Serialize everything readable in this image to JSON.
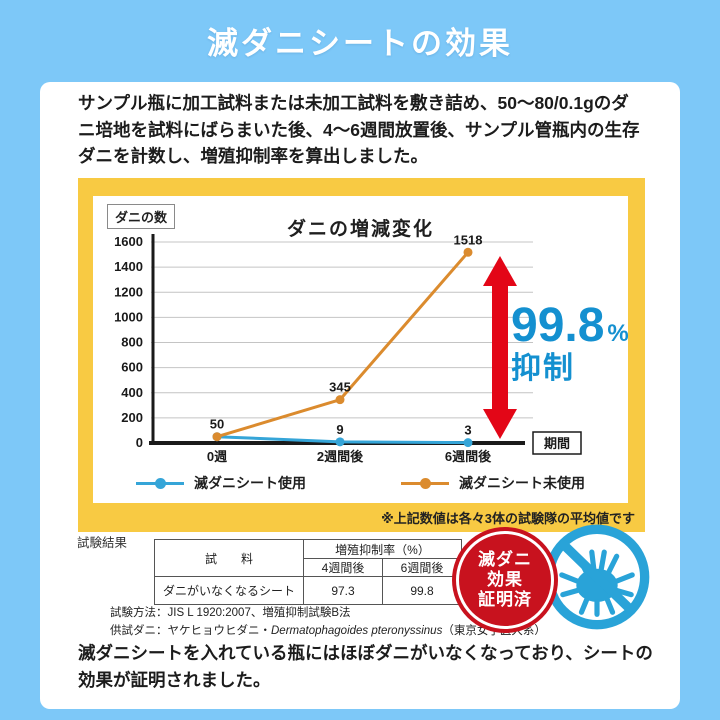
{
  "page": {
    "title": "滅ダニシートの効果",
    "bg_color": "#7dc8f8"
  },
  "intro": {
    "text": "サンプル瓶に加工試料または未加工試料を敷き詰め、50〜80/0.1gのダニ培地を試料にばらまいた後、4〜6週間放置後、サンプル管瓶内の生存ダニを計数し、増殖抑制率を算出しました。"
  },
  "chart_data": {
    "type": "line",
    "title": "ダニの増減変化",
    "y_axis_label": "ダニの数",
    "x_axis_label": "期間",
    "categories": [
      "0週",
      "2週間後",
      "6週間後"
    ],
    "series": [
      {
        "name": "滅ダニシート使用",
        "color": "#35a5d8",
        "values": [
          50,
          9,
          3
        ]
      },
      {
        "name": "滅ダニシート未使用",
        "color": "#db8b2e",
        "values": [
          50,
          345,
          1518
        ]
      }
    ],
    "ylim": [
      0,
      1600
    ],
    "y_ticks": [
      0,
      200,
      400,
      600,
      800,
      1000,
      1200,
      1400,
      1600
    ],
    "grid": true,
    "legend_position": "bottom",
    "annotation": {
      "value": "99.8",
      "unit": "%",
      "label": "抑制",
      "color": "#1490d0",
      "arrow_color": "#e30617"
    },
    "footnote": "※上記数値は各々3体の試験隊の平均値です"
  },
  "results": {
    "label": "試験結果",
    "table": {
      "col1_header": "試　　料",
      "group_header": "増殖抑制率（%）",
      "sub_headers": [
        "4週間後",
        "6週間後"
      ],
      "rows": [
        {
          "name": "ダニがいなくなるシート",
          "values": [
            "97.3",
            "99.8"
          ]
        }
      ]
    },
    "notes": {
      "method": "試験方法：JIS L 1920:2007、増殖抑制試験B法",
      "mite_prefix": "供試ダニ：ヤケヒョウヒダニ・",
      "mite_latin": "Dermatophagoides pteronyssinus",
      "mite_suffix": "（東京女子医大系）"
    }
  },
  "badge": {
    "lines": [
      "滅ダニ",
      "効果",
      "証明済"
    ],
    "color": "#c8121e",
    "prohibit_color": "#29a3d8"
  },
  "conclusion": {
    "text": "滅ダニシートを入れている瓶にはほぼダニがいなくなっており、シートの効果が証明されました。"
  }
}
